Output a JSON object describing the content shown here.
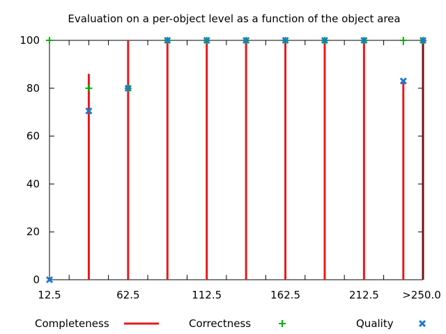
{
  "chart_data": {
    "type": "bar",
    "title": "Evaluation on a per-object level as a function of the object area",
    "xlabel": "",
    "ylabel": "",
    "ylim": [
      0,
      100
    ],
    "y_ticks": [
      0,
      20,
      40,
      60,
      80,
      100
    ],
    "x_ticks": [
      "12.5",
      "62.5",
      "112.5",
      "162.5",
      "212.5",
      ">250.0"
    ],
    "x": [
      12.5,
      25,
      37.5,
      50,
      62.5,
      75,
      87.5,
      100,
      112.5,
      125,
      137.5,
      150,
      162.5,
      175,
      187.5,
      200,
      212.5,
      225,
      237.5,
      250
    ],
    "x_plot_range": [
      12.5,
      250
    ],
    "grid": false,
    "legend_position": "bottom",
    "series": [
      {
        "name": "Completeness",
        "style": "impulse",
        "color": "#e41a1c",
        "x": [
          37.5,
          62.5,
          87.5,
          112.5,
          137.5,
          162.5,
          187.5,
          212.5,
          237.5,
          250
        ],
        "values": [
          86,
          100,
          100,
          100,
          100,
          100,
          100,
          100,
          83,
          100
        ]
      },
      {
        "name": "Correctness",
        "style": "plus",
        "color": "#00b000",
        "x": [
          12.5,
          37.5,
          62.5,
          87.5,
          112.5,
          137.5,
          162.5,
          187.5,
          212.5,
          237.5,
          250
        ],
        "values": [
          100,
          80,
          80,
          100,
          100,
          100,
          100,
          100,
          100,
          100,
          100
        ]
      },
      {
        "name": "Quality",
        "style": "cross",
        "color": "#1e78d0",
        "x": [
          12.5,
          37.5,
          62.5,
          87.5,
          112.5,
          137.5,
          162.5,
          187.5,
          212.5,
          237.5,
          250
        ],
        "values": [
          0,
          70.5,
          80,
          100,
          100,
          100,
          100,
          100,
          100,
          83,
          100
        ]
      }
    ]
  }
}
